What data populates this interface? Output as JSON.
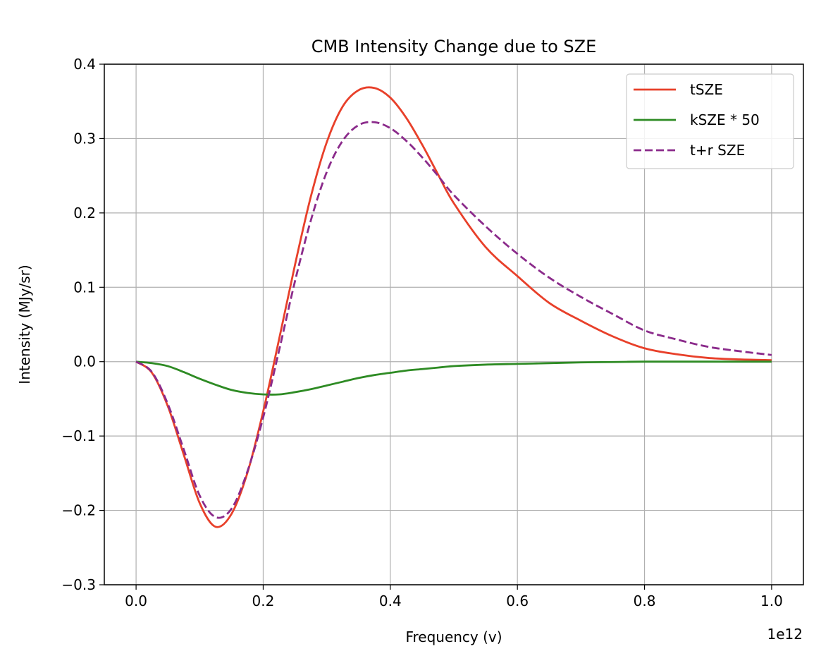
{
  "chart_data": {
    "type": "line",
    "title": "CMB Intensity Change due to SZE",
    "xlabel": "Frequency (v)",
    "ylabel": "Intensity (MJy/sr)",
    "x_offset_label": "1e12",
    "xlim": [
      -0.05,
      1.05
    ],
    "ylim": [
      -0.3,
      0.4
    ],
    "x_ticks": [
      0.0,
      0.2,
      0.4,
      0.6,
      0.8,
      1.0
    ],
    "x_tick_labels": [
      "0.0",
      "0.2",
      "0.4",
      "0.6",
      "0.8",
      "1.0"
    ],
    "y_ticks": [
      -0.3,
      -0.2,
      -0.1,
      0.0,
      0.1,
      0.2,
      0.3,
      0.4
    ],
    "y_tick_labels": [
      "−0.3",
      "−0.2",
      "−0.1",
      "0.0",
      "0.1",
      "0.2",
      "0.3",
      "0.4"
    ],
    "grid": true,
    "legend_position": "top-right",
    "x": [
      0.0,
      0.025,
      0.05,
      0.075,
      0.1,
      0.125,
      0.15,
      0.175,
      0.2,
      0.225,
      0.25,
      0.275,
      0.3,
      0.325,
      0.35,
      0.375,
      0.4,
      0.425,
      0.45,
      0.475,
      0.5,
      0.55,
      0.6,
      0.65,
      0.7,
      0.75,
      0.8,
      0.85,
      0.9,
      0.95,
      1.0
    ],
    "series": [
      {
        "name": "tSZE",
        "color": "#e8402a",
        "dash": "solid",
        "values": [
          0.0,
          -0.015,
          -0.06,
          -0.125,
          -0.19,
          -0.222,
          -0.205,
          -0.15,
          -0.067,
          0.03,
          0.13,
          0.222,
          0.295,
          0.343,
          0.365,
          0.368,
          0.355,
          0.328,
          0.292,
          0.252,
          0.213,
          0.154,
          0.115,
          0.079,
          0.055,
          0.034,
          0.018,
          0.01,
          0.005,
          0.003,
          0.002
        ]
      },
      {
        "name": "kSZE * 50",
        "color": "#2e8b24",
        "dash": "solid",
        "values": [
          0.0,
          -0.002,
          -0.006,
          -0.014,
          -0.023,
          -0.031,
          -0.038,
          -0.042,
          -0.044,
          -0.044,
          -0.041,
          -0.037,
          -0.032,
          -0.027,
          -0.022,
          -0.018,
          -0.015,
          -0.012,
          -0.01,
          -0.008,
          -0.006,
          -0.004,
          -0.003,
          -0.002,
          -0.001,
          -0.0005,
          0.0,
          0.0,
          0.0,
          0.0,
          0.0
        ]
      },
      {
        "name": "t+r SZE",
        "color": "#8b2b8b",
        "dash": "dashed",
        "values": [
          0.0,
          -0.014,
          -0.057,
          -0.118,
          -0.18,
          -0.209,
          -0.198,
          -0.148,
          -0.075,
          0.015,
          0.108,
          0.19,
          0.255,
          0.297,
          0.318,
          0.322,
          0.314,
          0.297,
          0.275,
          0.25,
          0.224,
          0.182,
          0.145,
          0.113,
          0.087,
          0.064,
          0.042,
          0.03,
          0.02,
          0.014,
          0.009
        ]
      }
    ]
  }
}
